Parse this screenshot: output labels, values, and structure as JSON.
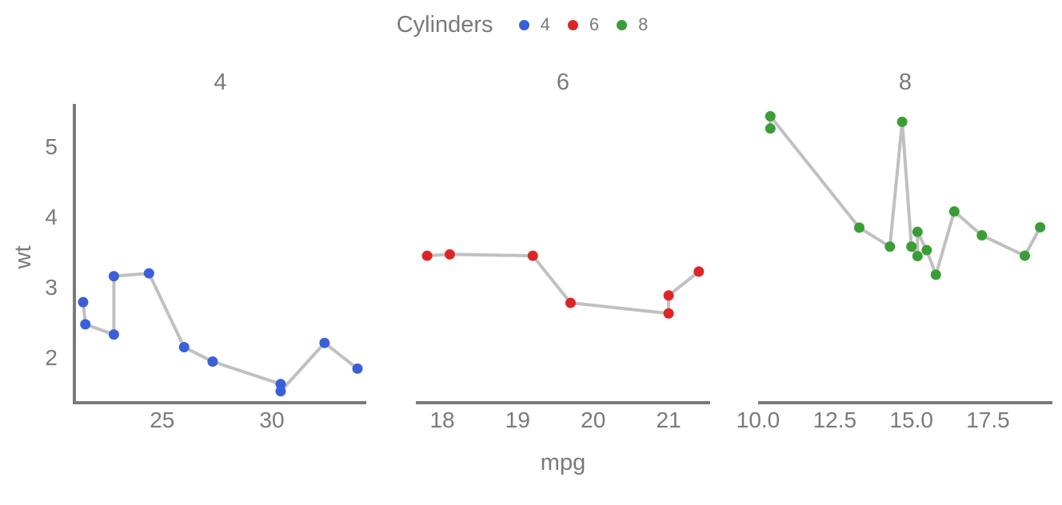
{
  "legend": {
    "title": "Cylinders",
    "items": [
      {
        "label": "4",
        "color": "#3a5fd9"
      },
      {
        "label": "6",
        "color": "#dc2626"
      },
      {
        "label": "8",
        "color": "#3a9e36"
      }
    ]
  },
  "chart_data": {
    "type": "line",
    "subtype": "faceted line with points",
    "xlabel": "mpg",
    "ylabel": "wt",
    "line_color": "#c0c0c0",
    "shared_y": {
      "ylim": [
        1.35,
        5.6
      ],
      "ticks": [
        2,
        3,
        4,
        5
      ]
    },
    "facets": [
      {
        "title": "4",
        "color": "#3a5fd9",
        "xlim": [
          21.0,
          34.3
        ],
        "xticks": [
          25,
          30
        ],
        "points": [
          {
            "x": 21.4,
            "y": 2.78
          },
          {
            "x": 21.5,
            "y": 2.465
          },
          {
            "x": 22.8,
            "y": 2.32
          },
          {
            "x": 22.8,
            "y": 3.15
          },
          {
            "x": 24.4,
            "y": 3.19
          },
          {
            "x": 26.0,
            "y": 2.14
          },
          {
            "x": 27.3,
            "y": 1.935
          },
          {
            "x": 30.4,
            "y": 1.615
          },
          {
            "x": 30.4,
            "y": 1.513
          },
          {
            "x": 32.4,
            "y": 2.2
          },
          {
            "x": 33.9,
            "y": 1.835
          }
        ]
      },
      {
        "title": "6",
        "color": "#dc2626",
        "xlim": [
          17.65,
          21.55
        ],
        "xticks": [
          18,
          19,
          20,
          21
        ],
        "points": [
          {
            "x": 17.8,
            "y": 3.44
          },
          {
            "x": 18.1,
            "y": 3.46
          },
          {
            "x": 19.2,
            "y": 3.44
          },
          {
            "x": 19.7,
            "y": 2.77
          },
          {
            "x": 21.0,
            "y": 2.62
          },
          {
            "x": 21.0,
            "y": 2.875
          },
          {
            "x": 21.4,
            "y": 3.215
          }
        ]
      },
      {
        "title": "8",
        "color": "#3a9e36",
        "xlim": [
          10.0,
          19.6
        ],
        "xticks": [
          "10.0",
          "12.5",
          "15.0",
          "17.5"
        ],
        "points": [
          {
            "x": 10.4,
            "y": 5.25
          },
          {
            "x": 10.4,
            "y": 5.424
          },
          {
            "x": 13.3,
            "y": 3.84
          },
          {
            "x": 14.3,
            "y": 3.57
          },
          {
            "x": 14.7,
            "y": 5.345
          },
          {
            "x": 15.0,
            "y": 3.57
          },
          {
            "x": 15.2,
            "y": 3.435
          },
          {
            "x": 15.2,
            "y": 3.78
          },
          {
            "x": 15.5,
            "y": 3.52
          },
          {
            "x": 15.8,
            "y": 3.17
          },
          {
            "x": 16.4,
            "y": 4.07
          },
          {
            "x": 17.3,
            "y": 3.73
          },
          {
            "x": 18.7,
            "y": 3.44
          },
          {
            "x": 19.2,
            "y": 3.845
          }
        ]
      }
    ]
  }
}
